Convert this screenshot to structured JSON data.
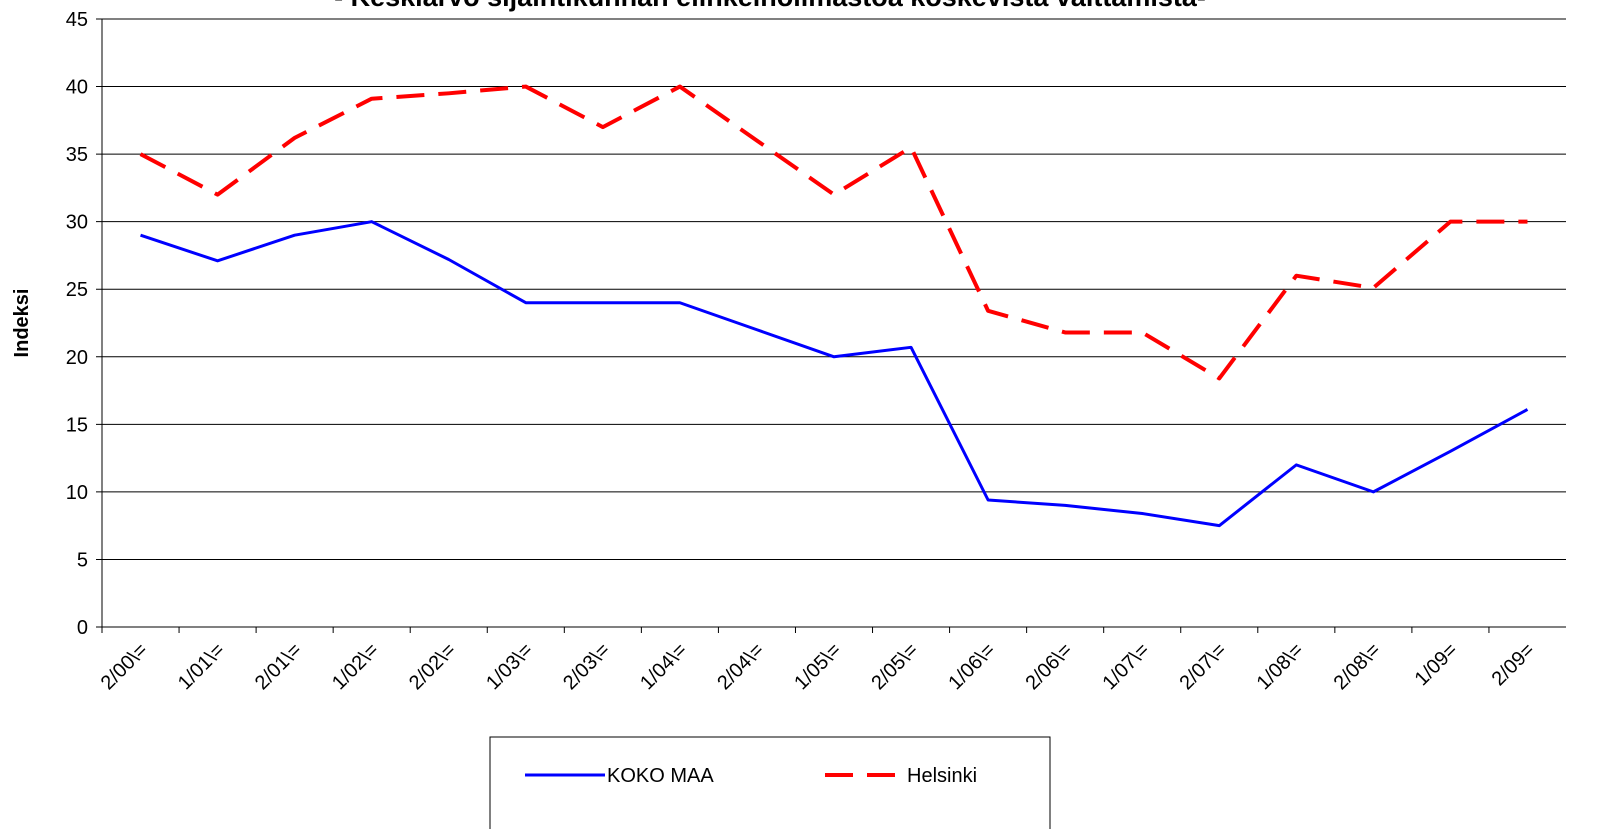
{
  "chart_data": {
    "type": "line",
    "title": "- Keskiarvo sijaintikunnan elinkeinoilmastoa koskevista väittämistä-",
    "y_label": "Indeksi",
    "categories": [
      "2/00\\=",
      "1/01\\=",
      "2/01\\=",
      "1/02\\=",
      "2/02\\=",
      "1/03\\=",
      "2/03\\=",
      "1/04\\=",
      "2/04\\=",
      "1/05\\=",
      "2/05\\=",
      "1/06\\=",
      "2/06\\=",
      "1/07\\=",
      "2/07\\=",
      "1/08\\=",
      "2/08\\=",
      "1/09=",
      "2/09="
    ],
    "series": [
      {
        "name": "KOKO MAA",
        "color": "#0000ff",
        "dash": false,
        "values": [
          29,
          27.1,
          29,
          30,
          27.2,
          24,
          24,
          24,
          22,
          20,
          20.7,
          9.4,
          9,
          8.4,
          7.5,
          12,
          10,
          13,
          16.1
        ]
      },
      {
        "name": "Helsinki",
        "color": "#ff0000",
        "dash": true,
        "values": [
          35,
          32,
          36.2,
          39.1,
          39.5,
          40,
          37,
          40,
          36,
          32,
          35.5,
          23.4,
          21.8,
          21.8,
          18.4,
          26,
          25.1,
          30,
          30
        ]
      }
    ],
    "ylim": [
      0,
      45
    ],
    "yticks": [
      0,
      5,
      10,
      15,
      20,
      25,
      30,
      35,
      40,
      45
    ],
    "grid": true,
    "legend": "bottom"
  }
}
